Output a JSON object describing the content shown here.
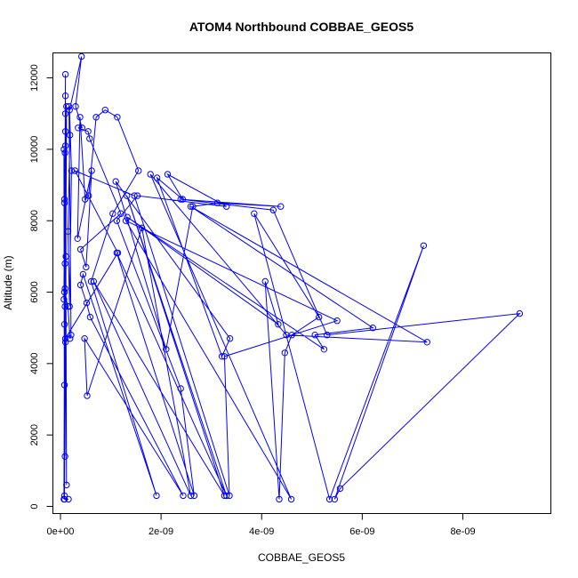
{
  "chart_data": {
    "type": "line",
    "title": "ATOM4 Northbound COBBAE_GEOS5",
    "xlabel": "COBBAE_GEOS5",
    "ylabel": "Altitude (m)",
    "xlim": [
      -1.5e-10,
      9.75e-09
    ],
    "ylim": [
      -200,
      12700
    ],
    "xticks": [
      0,
      2e-09,
      4e-09,
      6e-09,
      8e-09
    ],
    "xtick_labels": [
      "0e+00",
      "2e-09",
      "4e-09",
      "6e-09",
      "8e-09"
    ],
    "yticks": [
      0,
      2000,
      4000,
      6000,
      8000,
      10000,
      12000
    ],
    "ytick_labels": [
      "0",
      "2000",
      "4000",
      "6000",
      "8000",
      "10000",
      "12000"
    ],
    "grid": false,
    "color": "#0000ff",
    "series": [
      {
        "x": [
          7e-11,
          8e-11,
          1e-10,
          1.2e-10,
          9e-11,
          8e-11,
          1e-10,
          1.1e-10,
          9e-11,
          1e-10,
          8e-11,
          7e-11,
          9e-11,
          1e-10,
          1.2e-10,
          8e-11,
          7e-11,
          9e-11,
          1e-10,
          8e-11,
          1.1e-10,
          9e-11,
          1e-10,
          8e-11,
          1.5e-10,
          1.9e-10,
          2.1e-10,
          1.7e-10,
          1.9e-10,
          1.5e-10,
          1.8e-10,
          2.2e-10,
          1.8e-10,
          4.2e-10,
          3e-10,
          4.3e-10,
          3.5e-10,
          5.5e-10,
          5.8e-10,
          1.2e-09,
          4e-10,
          5.1e-10,
          6.2e-10,
          3.4e-10,
          3.9e-10,
          4.9e-10,
          5.6e-10,
          7.1e-10,
          8.9e-10,
          1.13e-09,
          1.55e-09,
          1.04e-09,
          6.1e-10,
          1.91e-09,
          4.5e-10,
          4e-10,
          5.2e-10,
          5.9e-10,
          2.44e-09,
          4.8e-10,
          5.3e-10,
          1.62e-09,
          2.59e-09,
          6.6e-10,
          3.26e-09,
          1.32e-09,
          3.3e-09,
          1.12e-09,
          2.66e-09,
          2.39e-09,
          1.12e-09,
          1.53e-09,
          3.3e-09,
          2.13e-09,
          2.43e-09,
          1.92e-09,
          3.21e-09,
          3.37e-09,
          1.1e-09,
          2.1e-09,
          2.63e-09,
          3.12e-09,
          4.38e-09,
          2.39e-09,
          4.23e-09,
          5.3e-09,
          9.13e-09,
          5.56e-09,
          5.45e-09,
          7.22e-09,
          5.35e-09,
          3.85e-09,
          5.14e-09,
          4.6e-09,
          4.46e-09,
          4.35e-09,
          4.07e-09,
          4.33e-09,
          1.33e-09,
          5.24e-09,
          5.06e-09,
          6.21e-09,
          2.59e-09,
          7.29e-09,
          4.49e-09,
          1.79e-09,
          4.59e-09,
          1.3e-09,
          5.5e-09,
          3.26e-09,
          3.36e-09,
          1.47e-09,
          2.9e-10,
          1.14e-09,
          1e-10,
          8e-11,
          1.6e-10
        ],
        "y": [
          200,
          5100,
          10500,
          600,
          9900,
          3400,
          11500,
          7000,
          5600,
          10100,
          8600,
          5800,
          6100,
          4600,
          11200,
          300,
          10000,
          6800,
          11000,
          8500,
          7000,
          1400,
          12100,
          6000,
          5600,
          4700,
          4800,
          11200,
          10400,
          7700,
          5600,
          9400,
          11100,
          12600,
          11200,
          10600,
          10600,
          10500,
          10300,
          8200,
          7200,
          6700,
          9400,
          7500,
          10900,
          8600,
          8700,
          10900,
          11100,
          10900,
          9400,
          8200,
          6300,
          300,
          6500,
          6200,
          5700,
          5300,
          300,
          4700,
          3100,
          7800,
          300,
          6300,
          300,
          8700,
          300,
          7100,
          300,
          3300,
          8000,
          8700,
          8400,
          9300,
          8600,
          9200,
          4200,
          4700,
          9100,
          4400,
          8400,
          8500,
          8400,
          8600,
          8300,
          4800,
          5400,
          500,
          200,
          7300,
          200,
          8200,
          5300,
          4800,
          4300,
          200,
          6300,
          5100,
          8100,
          4400,
          4800,
          5000,
          8400,
          4600,
          4800,
          9300,
          200,
          8000,
          5200,
          4200,
          300,
          8700,
          9400,
          7100,
          4700,
          200,
          200
        ]
      }
    ]
  }
}
